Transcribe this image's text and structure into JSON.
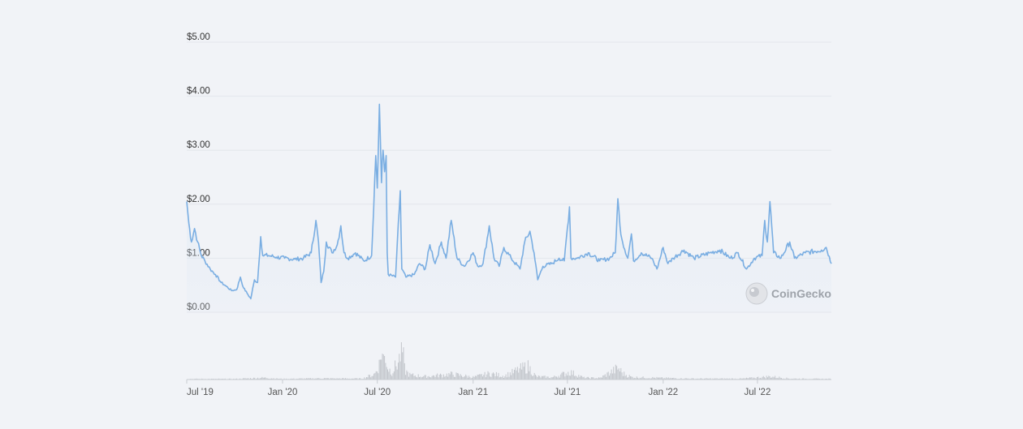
{
  "chart_data": {
    "type": "line",
    "title": "",
    "xlabel": "",
    "ylabel": "",
    "grid": true,
    "legend": "none",
    "y_ticks": [
      "$0.00",
      "$1.00",
      "$2.00",
      "$3.00",
      "$4.00",
      "$5.00"
    ],
    "y_tick_values": [
      0,
      1,
      2,
      3,
      4,
      5
    ],
    "ylim": [
      0,
      5
    ],
    "x_ticks": [
      "Jul '19",
      "Jan '20",
      "Jul '20",
      "Jan '21",
      "Jul '21",
      "Jan '22",
      "Jul '22"
    ],
    "x_tick_dates": [
      "2019-07-01",
      "2020-01-01",
      "2020-07-01",
      "2021-01-01",
      "2021-07-01",
      "2022-01-01",
      "2022-07-01"
    ],
    "xlim": [
      "2019-07-01",
      "2022-11-20"
    ],
    "series": [
      {
        "color": "#7aaee2",
        "points": [
          [
            "2019-07-01",
            2.05
          ],
          [
            "2019-07-05",
            1.65
          ],
          [
            "2019-07-10",
            1.3
          ],
          [
            "2019-07-16",
            1.55
          ],
          [
            "2019-07-22",
            1.3
          ],
          [
            "2019-07-29",
            1.05
          ],
          [
            "2019-08-05",
            0.95
          ],
          [
            "2019-08-15",
            0.8
          ],
          [
            "2019-08-25",
            0.7
          ],
          [
            "2019-09-05",
            0.55
          ],
          [
            "2019-09-15",
            0.48
          ],
          [
            "2019-09-25",
            0.4
          ],
          [
            "2019-10-05",
            0.42
          ],
          [
            "2019-10-12",
            0.65
          ],
          [
            "2019-10-18",
            0.45
          ],
          [
            "2019-10-25",
            0.35
          ],
          [
            "2019-11-01",
            0.25
          ],
          [
            "2019-11-08",
            0.6
          ],
          [
            "2019-11-14",
            0.55
          ],
          [
            "2019-11-20",
            1.4
          ],
          [
            "2019-11-24",
            1.05
          ],
          [
            "2019-12-05",
            1.05
          ],
          [
            "2019-12-20",
            1.02
          ],
          [
            "2020-01-05",
            1.0
          ],
          [
            "2020-01-25",
            0.98
          ],
          [
            "2020-02-10",
            1.0
          ],
          [
            "2020-02-25",
            1.1
          ],
          [
            "2020-03-05",
            1.7
          ],
          [
            "2020-03-10",
            1.3
          ],
          [
            "2020-03-15",
            0.55
          ],
          [
            "2020-03-20",
            0.75
          ],
          [
            "2020-03-25",
            1.3
          ],
          [
            "2020-04-05",
            1.1
          ],
          [
            "2020-04-15",
            1.25
          ],
          [
            "2020-04-22",
            1.6
          ],
          [
            "2020-04-28",
            1.1
          ],
          [
            "2020-05-05",
            1.0
          ],
          [
            "2020-05-20",
            1.1
          ],
          [
            "2020-06-05",
            0.95
          ],
          [
            "2020-06-20",
            1.05
          ],
          [
            "2020-06-28",
            2.9
          ],
          [
            "2020-07-01",
            2.3
          ],
          [
            "2020-07-05",
            3.85
          ],
          [
            "2020-07-09",
            2.4
          ],
          [
            "2020-07-12",
            3.0
          ],
          [
            "2020-07-15",
            2.6
          ],
          [
            "2020-07-18",
            2.9
          ],
          [
            "2020-07-20",
            1.1
          ],
          [
            "2020-07-22",
            0.7
          ],
          [
            "2020-08-05",
            0.65
          ],
          [
            "2020-08-14",
            2.25
          ],
          [
            "2020-08-17",
            0.8
          ],
          [
            "2020-08-25",
            0.65
          ],
          [
            "2020-09-10",
            0.7
          ],
          [
            "2020-09-20",
            0.9
          ],
          [
            "2020-10-01",
            0.8
          ],
          [
            "2020-10-10",
            1.25
          ],
          [
            "2020-10-20",
            0.9
          ],
          [
            "2020-11-01",
            1.3
          ],
          [
            "2020-11-10",
            1.0
          ],
          [
            "2020-11-20",
            1.7
          ],
          [
            "2020-12-01",
            1.0
          ],
          [
            "2020-12-15",
            0.85
          ],
          [
            "2021-01-01",
            1.1
          ],
          [
            "2021-01-10",
            0.85
          ],
          [
            "2021-01-20",
            0.9
          ],
          [
            "2021-02-01",
            1.6
          ],
          [
            "2021-02-10",
            1.0
          ],
          [
            "2021-02-20",
            0.85
          ],
          [
            "2021-03-01",
            1.2
          ],
          [
            "2021-03-15",
            1.0
          ],
          [
            "2021-04-01",
            0.8
          ],
          [
            "2021-04-10",
            1.3
          ],
          [
            "2021-04-20",
            1.5
          ],
          [
            "2021-04-28",
            1.1
          ],
          [
            "2021-05-05",
            0.6
          ],
          [
            "2021-05-15",
            0.85
          ],
          [
            "2021-06-01",
            0.9
          ],
          [
            "2021-06-15",
            1.0
          ],
          [
            "2021-06-25",
            0.95
          ],
          [
            "2021-07-05",
            1.95
          ],
          [
            "2021-07-08",
            1.0
          ],
          [
            "2021-07-20",
            1.0
          ],
          [
            "2021-08-10",
            1.1
          ],
          [
            "2021-09-01",
            0.95
          ],
          [
            "2021-09-20",
            1.0
          ],
          [
            "2021-10-01",
            1.1
          ],
          [
            "2021-10-06",
            2.1
          ],
          [
            "2021-10-10",
            1.6
          ],
          [
            "2021-10-15",
            1.3
          ],
          [
            "2021-10-25",
            1.0
          ],
          [
            "2021-11-01",
            1.45
          ],
          [
            "2021-11-05",
            0.95
          ],
          [
            "2021-11-20",
            1.1
          ],
          [
            "2021-12-10",
            1.0
          ],
          [
            "2021-12-20",
            0.8
          ],
          [
            "2022-01-01",
            1.2
          ],
          [
            "2022-01-10",
            0.9
          ],
          [
            "2022-01-20",
            1.0
          ],
          [
            "2022-02-10",
            1.15
          ],
          [
            "2022-03-01",
            1.0
          ],
          [
            "2022-04-01",
            1.1
          ],
          [
            "2022-04-20",
            1.15
          ],
          [
            "2022-05-10",
            1.0
          ],
          [
            "2022-05-25",
            1.1
          ],
          [
            "2022-06-10",
            0.8
          ],
          [
            "2022-06-25",
            1.0
          ],
          [
            "2022-07-10",
            1.05
          ],
          [
            "2022-07-15",
            1.7
          ],
          [
            "2022-07-20",
            1.3
          ],
          [
            "2022-07-25",
            2.05
          ],
          [
            "2022-08-01",
            1.1
          ],
          [
            "2022-08-15",
            1.0
          ],
          [
            "2022-09-01",
            1.3
          ],
          [
            "2022-09-10",
            1.0
          ],
          [
            "2022-10-01",
            1.1
          ],
          [
            "2022-11-01",
            1.15
          ],
          [
            "2022-11-10",
            1.2
          ],
          [
            "2022-11-20",
            0.9
          ]
        ]
      }
    ],
    "volume": {
      "color": "#c3c6cc",
      "points": [
        [
          "2019-07-01",
          0.02
        ],
        [
          "2019-10-01",
          0.02
        ],
        [
          "2019-11-25",
          0.06
        ],
        [
          "2020-01-01",
          0.02
        ],
        [
          "2020-03-10",
          0.04
        ],
        [
          "2020-06-01",
          0.03
        ],
        [
          "2020-06-25",
          0.18
        ],
        [
          "2020-07-05",
          0.55
        ],
        [
          "2020-07-08",
          0.95
        ],
        [
          "2020-07-12",
          0.7
        ],
        [
          "2020-07-16",
          0.8
        ],
        [
          "2020-07-20",
          0.4
        ],
        [
          "2020-07-28",
          0.25
        ],
        [
          "2020-08-10",
          0.6
        ],
        [
          "2020-08-14",
          0.85
        ],
        [
          "2020-08-18",
          0.95
        ],
        [
          "2020-08-22",
          0.3
        ],
        [
          "2020-09-01",
          0.15
        ],
        [
          "2020-10-01",
          0.1
        ],
        [
          "2020-11-20",
          0.18
        ],
        [
          "2021-01-01",
          0.08
        ],
        [
          "2021-02-01",
          0.2
        ],
        [
          "2021-03-01",
          0.12
        ],
        [
          "2021-04-15",
          0.45
        ],
        [
          "2021-05-01",
          0.1
        ],
        [
          "2021-06-01",
          0.07
        ],
        [
          "2021-07-05",
          0.25
        ],
        [
          "2021-08-01",
          0.06
        ],
        [
          "2021-09-01",
          0.05
        ],
        [
          "2021-10-06",
          0.38
        ],
        [
          "2021-10-15",
          0.2
        ],
        [
          "2021-11-01",
          0.08
        ],
        [
          "2022-01-01",
          0.05
        ],
        [
          "2022-03-01",
          0.03
        ],
        [
          "2022-06-01",
          0.03
        ],
        [
          "2022-07-25",
          0.1
        ],
        [
          "2022-09-01",
          0.03
        ],
        [
          "2022-11-20",
          0.02
        ]
      ]
    }
  },
  "watermark": {
    "text": "CoinGecko",
    "icon": "gecko-logo-icon"
  }
}
